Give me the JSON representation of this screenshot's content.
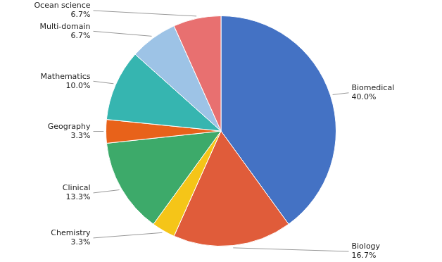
{
  "chart_data": {
    "type": "pie",
    "categories": [
      "Biomedical",
      "Biology",
      "Chemistry",
      "Clinical",
      "Geography",
      "Mathematics",
      "Multi-domain",
      "Ocean science"
    ],
    "values": [
      40.0,
      16.7,
      3.3,
      13.3,
      3.3,
      10.0,
      6.7,
      6.7
    ],
    "value_labels": [
      "40.0%",
      "16.7%",
      "3.3%",
      "13.3%",
      "3.3%",
      "10.0%",
      "6.7%",
      "6.7%"
    ],
    "colors": [
      "#4472C4",
      "#E05C3A",
      "#F5C518",
      "#3DAA6A",
      "#E8621A",
      "#36B5B0",
      "#9DC3E6",
      "#E87070"
    ],
    "data_labels": true
  }
}
